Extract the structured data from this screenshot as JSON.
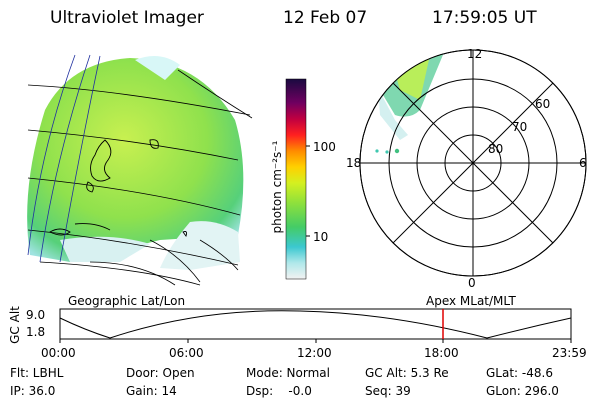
{
  "header": {
    "instrument": "Ultraviolet Imager",
    "date": "12 Feb 07",
    "time": "17:59:05 UT"
  },
  "colorbar": {
    "unit_label": "photon cm⁻²s⁻¹",
    "ticks": [
      "100",
      "10"
    ]
  },
  "polar_plot": {
    "mlt_labels": {
      "top": "12",
      "left": "18",
      "right": "6",
      "bottom": "0"
    },
    "lat_labels": [
      "60",
      "70",
      "80"
    ]
  },
  "map_labels": {
    "left": "Geographic Lat/Lon",
    "right": "Apex MLat/MLT"
  },
  "altitude_strip": {
    "ylabel": "GC Alt",
    "y_ticks": [
      "9.0",
      "1.8"
    ],
    "x_ticks": [
      "00:00",
      "06:00",
      "12:00",
      "18:00",
      "23:59"
    ],
    "current_marker_color": "#e00000"
  },
  "info": {
    "flt": "Flt: LBHL",
    "ip": "IP: 36.0",
    "door": "Door: Open",
    "gain": "Gain: 14",
    "mode": "Mode: Normal",
    "dsp": "Dsp:    -0.0",
    "gc_alt": "GC Alt: 5.3 Re",
    "seq": "Seq: 39",
    "glat": "GLat: -48.6",
    "glon": "GLon: 296.0"
  }
}
